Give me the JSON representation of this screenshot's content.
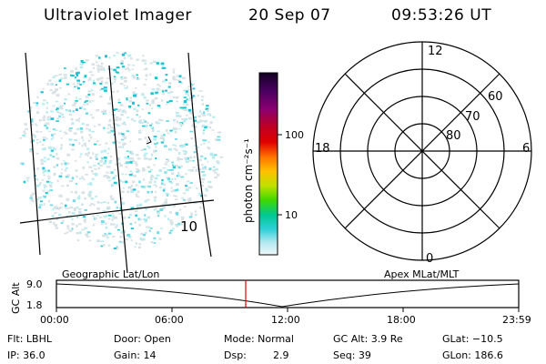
{
  "header": {
    "instrument": "Ultraviolet Imager",
    "date": "20 Sep 07",
    "time": "09:53:26 UT"
  },
  "image_panel": {
    "label_a": "∘",
    "label_b": "10"
  },
  "colorbar": {
    "unit_label": "photon cm⁻²s⁻¹",
    "ticks": [
      "100",
      "10"
    ],
    "colors": [
      "#1a0030",
      "#3a0050",
      "#7a0070",
      "#a80040",
      "#d80000",
      "#ff6000",
      "#ffb000",
      "#c8e000",
      "#60e000",
      "#00d070",
      "#20d0d0",
      "#a0e8f0",
      "#e0f4f8"
    ]
  },
  "polar": {
    "mlt_top": "12",
    "mlt_left": "18",
    "mlt_right": "6",
    "mlt_bottom": "0",
    "lat_labels": [
      "60",
      "70",
      "80"
    ]
  },
  "timeline": {
    "left_title": "Geographic Lat/Lon",
    "right_title": "Apex MLat/MLT",
    "y_label": "GC Alt",
    "y_ticks": [
      "9.0",
      "1.8"
    ],
    "x_ticks": [
      "00:00",
      "06:00",
      "12:00",
      "18:00",
      "23:59"
    ],
    "marker_color": "#e00000"
  },
  "status": {
    "flt": "Flt: LBHL",
    "ip": "IP: 36.0",
    "door": "Door: Open",
    "gain": "Gain: 14",
    "mode": "Mode: Normal",
    "dsp": "Dsp:",
    "dsp_value": "2.9",
    "gc_alt": "GC Alt: 3.9 Re",
    "seq": "Seq: 39",
    "glat": "GLat: −10.5",
    "glon": "GLon: 186.6"
  }
}
